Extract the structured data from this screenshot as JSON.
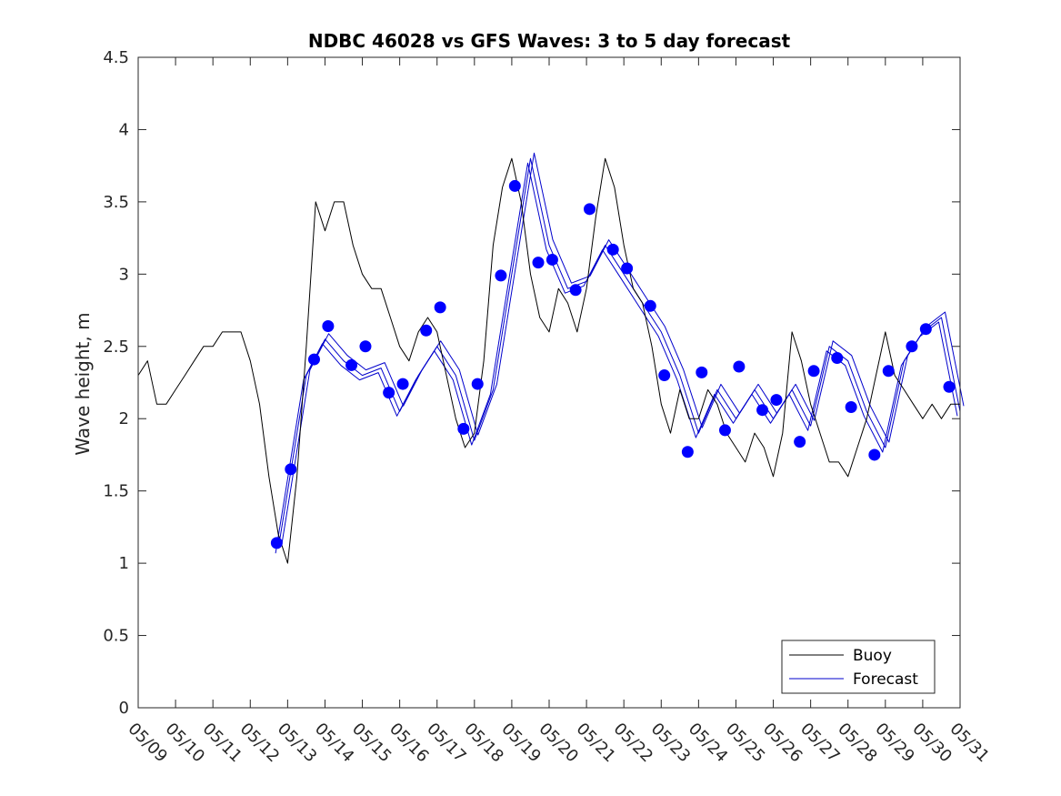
{
  "chart_data": {
    "type": "line",
    "title": "NDBC 46028 vs GFS Waves: 3 to 5 day forecast",
    "xlabel": "",
    "ylabel": "Wave height, m",
    "xlim": [
      "05/09",
      "05/31"
    ],
    "ylim": [
      0,
      4.5
    ],
    "x_ticks": [
      "05/09",
      "05/10",
      "05/11",
      "05/12",
      "05/13",
      "05/14",
      "05/15",
      "05/16",
      "05/17",
      "05/18",
      "05/19",
      "05/20",
      "05/21",
      "05/22",
      "05/23",
      "05/24",
      "05/25",
      "05/26",
      "05/27",
      "05/28",
      "05/29",
      "05/30",
      "05/31"
    ],
    "y_ticks": [
      0,
      0.5,
      1,
      1.5,
      2,
      2.5,
      3,
      3.5,
      4,
      4.5
    ],
    "y_tick_labels": [
      "0",
      "0.5",
      "1",
      "1.5",
      "2",
      "2.5",
      "3",
      "3.5",
      "4",
      "4.5"
    ],
    "grid": false,
    "legend": {
      "placement": "bottom-right",
      "entries": [
        "Buoy",
        "Forecast"
      ]
    },
    "colors": {
      "buoy": "#000000",
      "forecast": "#0000cc",
      "markers": "#0000ff"
    },
    "series": [
      {
        "name": "Buoy",
        "x": [
          "05/09 00:00",
          "05/09 06:00",
          "05/09 12:00",
          "05/09 18:00",
          "05/10 00:00",
          "05/10 06:00",
          "05/10 12:00",
          "05/10 18:00",
          "05/11 00:00",
          "05/11 06:00",
          "05/11 12:00",
          "05/11 18:00",
          "05/12 00:00",
          "05/12 06:00",
          "05/12 12:00",
          "05/12 18:00",
          "05/13 00:00",
          "05/13 06:00",
          "05/13 12:00",
          "05/13 18:00",
          "05/14 00:00",
          "05/14 06:00",
          "05/14 12:00",
          "05/14 18:00",
          "05/15 00:00",
          "05/15 06:00",
          "05/15 12:00",
          "05/15 18:00",
          "05/16 00:00",
          "05/16 06:00",
          "05/16 12:00",
          "05/16 18:00",
          "05/17 00:00",
          "05/17 06:00",
          "05/17 12:00",
          "05/17 18:00",
          "05/18 00:00",
          "05/18 06:00",
          "05/18 12:00",
          "05/18 18:00",
          "05/19 00:00",
          "05/19 06:00",
          "05/19 12:00",
          "05/19 18:00",
          "05/20 00:00",
          "05/20 06:00",
          "05/20 12:00",
          "05/20 18:00",
          "05/21 00:00",
          "05/21 06:00",
          "05/21 12:00",
          "05/21 18:00",
          "05/22 00:00",
          "05/22 06:00",
          "05/22 12:00",
          "05/22 18:00",
          "05/23 00:00",
          "05/23 06:00",
          "05/23 12:00",
          "05/23 18:00",
          "05/24 00:00",
          "05/24 06:00",
          "05/24 12:00",
          "05/24 18:00",
          "05/25 00:00",
          "05/25 06:00",
          "05/25 12:00",
          "05/25 18:00",
          "05/26 00:00",
          "05/26 06:00",
          "05/26 12:00",
          "05/26 18:00",
          "05/27 00:00",
          "05/27 06:00",
          "05/27 12:00",
          "05/27 18:00",
          "05/28 00:00",
          "05/28 06:00",
          "05/28 12:00",
          "05/28 18:00",
          "05/29 00:00",
          "05/29 06:00",
          "05/29 12:00",
          "05/29 18:00",
          "05/30 00:00",
          "05/30 06:00",
          "05/30 12:00",
          "05/30 18:00",
          "05/31 00:00"
        ],
        "values": [
          2.3,
          2.4,
          2.1,
          2.1,
          2.2,
          2.3,
          2.4,
          2.5,
          2.5,
          2.6,
          2.6,
          2.6,
          2.4,
          2.1,
          1.6,
          1.2,
          1.0,
          1.6,
          2.5,
          3.5,
          3.3,
          3.5,
          3.5,
          3.2,
          3.0,
          2.9,
          2.9,
          2.7,
          2.5,
          2.4,
          2.6,
          2.7,
          2.6,
          2.3,
          2.0,
          1.8,
          1.9,
          2.4,
          3.2,
          3.6,
          3.8,
          3.5,
          3.0,
          2.7,
          2.6,
          2.9,
          2.8,
          2.6,
          2.9,
          3.4,
          3.8,
          3.6,
          3.2,
          2.9,
          2.8,
          2.5,
          2.1,
          1.9,
          2.2,
          2.0,
          2.0,
          2.2,
          2.1,
          1.9,
          1.8,
          1.7,
          1.9,
          1.8,
          1.6,
          1.9,
          2.6,
          2.4,
          2.1,
          1.9,
          1.7,
          1.7,
          1.6,
          1.8,
          2.0,
          2.3,
          2.6,
          2.3,
          2.2,
          2.1,
          2.0,
          2.1,
          2.0,
          2.1,
          2.1
        ]
      },
      {
        "name": "Forecast",
        "x": [
          "05/12 18:00",
          "05/13 00:00",
          "05/13 12:00",
          "05/14 00:00",
          "05/14 12:00",
          "05/15 00:00",
          "05/15 12:00",
          "05/16 00:00",
          "05/16 12:00",
          "05/17 00:00",
          "05/17 12:00",
          "05/18 00:00",
          "05/18 12:00",
          "05/19 00:00",
          "05/19 12:00",
          "05/20 00:00",
          "05/20 12:00",
          "05/21 00:00",
          "05/21 12:00",
          "05/22 00:00",
          "05/22 12:00",
          "05/23 00:00",
          "05/23 12:00",
          "05/24 00:00",
          "05/24 12:00",
          "05/25 00:00",
          "05/25 12:00",
          "05/26 00:00",
          "05/26 12:00",
          "05/27 00:00",
          "05/27 12:00",
          "05/28 00:00",
          "05/28 12:00",
          "05/29 00:00",
          "05/29 12:00",
          "05/30 00:00",
          "05/30 12:00",
          "05/31 00:00"
        ],
        "values": [
          1.1,
          1.5,
          2.3,
          2.55,
          2.4,
          2.3,
          2.35,
          2.05,
          2.3,
          2.5,
          2.3,
          1.85,
          2.2,
          3.0,
          3.8,
          3.2,
          2.9,
          2.95,
          3.2,
          3.0,
          2.8,
          2.6,
          2.3,
          1.9,
          2.2,
          2.0,
          2.2,
          2.0,
          2.2,
          1.95,
          2.5,
          2.4,
          2.05,
          1.8,
          2.4,
          2.6,
          2.7,
          2.05
        ]
      }
    ],
    "forecast_points": {
      "x": [
        "05/12 17:00",
        "05/13 02:00",
        "05/13 17:00",
        "05/14 02:00",
        "05/14 17:00",
        "05/15 02:00",
        "05/15 17:00",
        "05/16 02:00",
        "05/16 17:00",
        "05/17 02:00",
        "05/17 17:00",
        "05/18 02:00",
        "05/18 17:00",
        "05/19 02:00",
        "05/19 17:00",
        "05/20 02:00",
        "05/20 17:00",
        "05/21 02:00",
        "05/21 17:00",
        "05/22 02:00",
        "05/22 17:00",
        "05/23 02:00",
        "05/23 17:00",
        "05/24 02:00",
        "05/24 17:00",
        "05/25 02:00",
        "05/25 17:00",
        "05/26 02:00",
        "05/26 17:00",
        "05/27 02:00",
        "05/27 17:00",
        "05/28 02:00",
        "05/28 17:00",
        "05/29 02:00",
        "05/29 17:00",
        "05/30 02:00",
        "05/30 17:00"
      ],
      "values": [
        1.14,
        1.65,
        2.41,
        2.64,
        2.37,
        2.5,
        2.18,
        2.24,
        2.61,
        2.77,
        1.93,
        2.24,
        2.99,
        3.61,
        3.08,
        3.1,
        2.89,
        3.45,
        3.17,
        3.04,
        2.78,
        2.3,
        1.77,
        2.32,
        1.92,
        2.36,
        2.06,
        2.13,
        1.84,
        2.33,
        2.42,
        2.08,
        1.75,
        2.33,
        2.5,
        2.62,
        2.22
      ]
    }
  }
}
